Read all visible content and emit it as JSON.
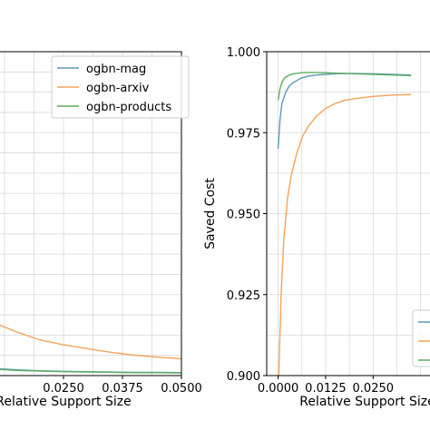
{
  "chart_data": [
    {
      "type": "line",
      "xlabel": "Relative Support Size",
      "ylabel": "",
      "xlim": [
        0.0,
        0.05
      ],
      "ylim": [
        0.0,
        1.0
      ],
      "grid": true,
      "legend": "top-right",
      "x_ticks": [
        0.025,
        0.0375,
        0.05
      ],
      "x_tick_labels": [
        "0.0250",
        "0.0375",
        "0.0500"
      ],
      "series": [
        {
          "name": "ogbn-mag",
          "color": "#5b9ab8",
          "x": [
            0.005,
            0.01,
            0.015,
            0.02,
            0.025,
            0.03,
            0.035,
            0.04,
            0.045,
            0.05
          ],
          "y": [
            0.028,
            0.022,
            0.018,
            0.015,
            0.013,
            0.012,
            0.011,
            0.01,
            0.01,
            0.009
          ]
        },
        {
          "name": "ogbn-arxiv",
          "color": "#f5a35b",
          "x": [
            0.005,
            0.01,
            0.015,
            0.02,
            0.025,
            0.03,
            0.035,
            0.04,
            0.045,
            0.05
          ],
          "y": [
            0.19,
            0.165,
            0.135,
            0.11,
            0.095,
            0.083,
            0.072,
            0.063,
            0.057,
            0.052
          ]
        },
        {
          "name": "ogbn-products",
          "color": "#5fae5f",
          "x": [
            0.005,
            0.01,
            0.015,
            0.02,
            0.025,
            0.03,
            0.035,
            0.04,
            0.045,
            0.05
          ],
          "y": [
            0.024,
            0.02,
            0.016,
            0.014,
            0.012,
            0.011,
            0.01,
            0.009,
            0.009,
            0.008
          ]
        }
      ]
    },
    {
      "type": "line",
      "xlabel": "Relative Support Size",
      "ylabel": "Saved Cost",
      "xlim": [
        -0.003,
        0.05
      ],
      "ylim": [
        0.9,
        1.0
      ],
      "grid": true,
      "legend": "bottom-right",
      "x_ticks": [
        0.0,
        0.0125,
        0.025
      ],
      "x_tick_labels": [
        "0.0000",
        "0.0125",
        "0.0250"
      ],
      "y_ticks": [
        0.9,
        0.925,
        0.95,
        0.975,
        1.0
      ],
      "y_tick_labels": [
        "0.900",
        "0.925",
        "0.950",
        "0.975",
        "1.000"
      ],
      "series": [
        {
          "name": "ogbn-mag",
          "color": "#5b9ab8",
          "x": [
            0.0,
            0.0005,
            0.001,
            0.002,
            0.003,
            0.004,
            0.006,
            0.008,
            0.01,
            0.0125,
            0.015,
            0.02,
            0.025,
            0.03,
            0.035
          ],
          "y": [
            0.97,
            0.979,
            0.984,
            0.9875,
            0.9895,
            0.9905,
            0.9918,
            0.9925,
            0.9928,
            0.993,
            0.9932,
            0.9933,
            0.9932,
            0.993,
            0.9928
          ]
        },
        {
          "name": "ogbn-arxiv",
          "color": "#f5a35b",
          "x": [
            0.0,
            0.0003,
            0.0008,
            0.0015,
            0.0025,
            0.0035,
            0.005,
            0.0065,
            0.008,
            0.01,
            0.0125,
            0.015,
            0.0175,
            0.02,
            0.025,
            0.03,
            0.035
          ],
          "y": [
            0.893,
            0.905,
            0.925,
            0.942,
            0.955,
            0.962,
            0.969,
            0.974,
            0.977,
            0.98,
            0.9825,
            0.984,
            0.985,
            0.9855,
            0.9862,
            0.9866,
            0.9868
          ]
        },
        {
          "name": "ogbn-products",
          "color": "#5fae5f",
          "x": [
            0.0,
            0.0005,
            0.001,
            0.0015,
            0.002,
            0.003,
            0.004,
            0.006,
            0.008,
            0.01,
            0.0125,
            0.015,
            0.02,
            0.025,
            0.03,
            0.035
          ],
          "y": [
            0.985,
            0.9885,
            0.9905,
            0.9915,
            0.9922,
            0.9928,
            0.9932,
            0.9935,
            0.9936,
            0.9936,
            0.9935,
            0.9934,
            0.9932,
            0.993,
            0.9928,
            0.9926
          ]
        }
      ]
    }
  ]
}
